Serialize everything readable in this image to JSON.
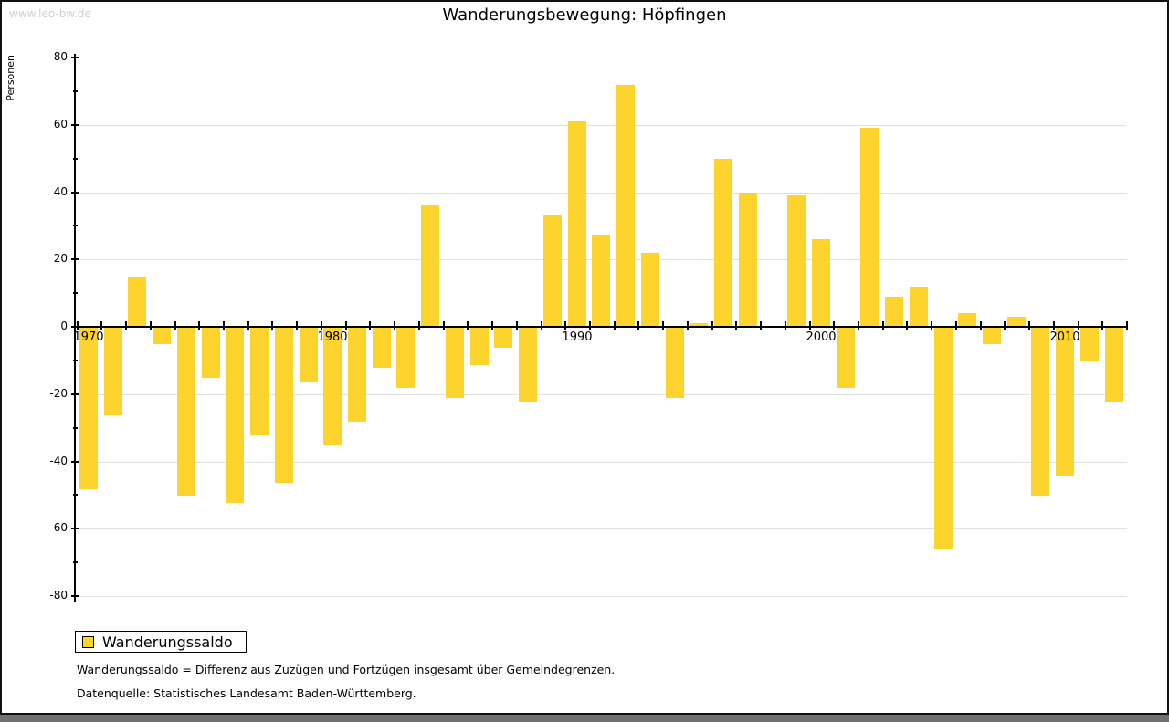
{
  "watermark": "www.leo-bw.de",
  "title": "Wanderungsbewegung: Höpfingen",
  "y_axis_title": "Personen",
  "legend": {
    "label": "Wanderungssaldo"
  },
  "footnotes": [
    "Wanderungssaldo = Differenz aus Zuzügen und Fortzügen insgesamt über Gemeindegrenzen.",
    "Datenquelle: Statistisches Landesamt Baden-Württemberg."
  ],
  "colors": {
    "bar": "#FDD32E",
    "grid": "#e0e0e0",
    "axis": "#000000",
    "watermark": "#cfcfcf",
    "bottom_strip": "#707070"
  },
  "chart_data": {
    "type": "bar",
    "title": "Wanderungsbewegung: Höpfingen",
    "ylabel": "Personen",
    "series_name": "Wanderungssaldo",
    "years": [
      1970,
      1971,
      1972,
      1973,
      1974,
      1975,
      1976,
      1977,
      1978,
      1979,
      1980,
      1981,
      1982,
      1983,
      1984,
      1985,
      1986,
      1987,
      1988,
      1989,
      1990,
      1991,
      1992,
      1993,
      1994,
      1995,
      1996,
      1997,
      1998,
      1999,
      2000,
      2001,
      2002,
      2003,
      2004,
      2005,
      2006,
      2007,
      2008,
      2009,
      2010,
      2011,
      2012
    ],
    "values": [
      -48,
      -26,
      15,
      -5,
      -50,
      -15,
      -52,
      -32,
      -46,
      -16,
      -35,
      -28,
      -12,
      -18,
      36,
      -21,
      -11,
      -6,
      -22,
      33,
      61,
      27,
      72,
      22,
      -21,
      1,
      50,
      40,
      0,
      39,
      26,
      -18,
      59,
      9,
      12,
      -66,
      4,
      -5,
      3,
      -50,
      -44,
      -10,
      -22
    ],
    "ylim": [
      -80,
      80
    ],
    "ytick_label_step": 20,
    "ytick_minor_step": 10,
    "xtick_labels": [
      "1970",
      "1980",
      "1990",
      "2000",
      "2010"
    ],
    "grid": true,
    "legend_position": "bottom-left"
  }
}
